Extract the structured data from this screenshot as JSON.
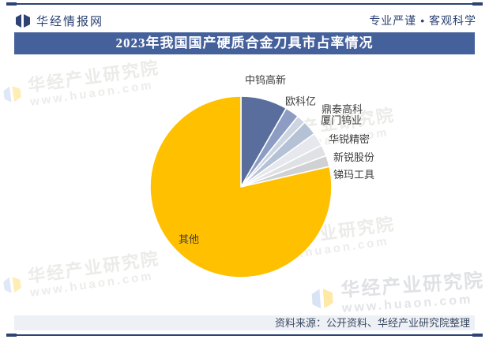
{
  "header": {
    "site_name": "华经情报网",
    "slogan": "专业严谨 • 客观科学"
  },
  "title": "2023年我国国产硬质合金刀具市占率情况",
  "source_note": "资料来源：公开资料、华经产业研究院整理",
  "watermark": {
    "line1": "华经产业研究院",
    "line2": "www.huaon.com"
  },
  "colors": {
    "navy": "#2c4373",
    "title_bar_bg": "#45619c",
    "footer_bg": "#edf0f5",
    "label_text": "#3d3d3d",
    "watermark_blue": "#b9cdec",
    "watermark_yellow": "#ffd85e"
  },
  "chart_data": {
    "type": "pie",
    "title": "2023年我国国产硬质合金刀具市占率情况",
    "labels": [
      "中钨高新",
      "欧科亿",
      "鼎泰高科",
      "厦门钨业",
      "华锐精密",
      "新锐股份",
      "锑玛工具",
      "其他"
    ],
    "values": [
      8.3,
      2.5,
      1.6,
      2.6,
      2.4,
      2.0,
      2.0,
      78.6
    ],
    "unit": "% (share estimated from slice angles; chart shows no numeric labels)",
    "colors": [
      "#5a6e9e",
      "#8d9cc2",
      "#cdd5e2",
      "#b5c1d5",
      "#e6e8ee",
      "#dfe1e5",
      "#d0d1d4",
      "#ffc000"
    ],
    "start_angle": "12 o'clock, clockwise",
    "legend": "none — direct labels beside slices",
    "slice_gap_stroke": "#ffffff"
  }
}
